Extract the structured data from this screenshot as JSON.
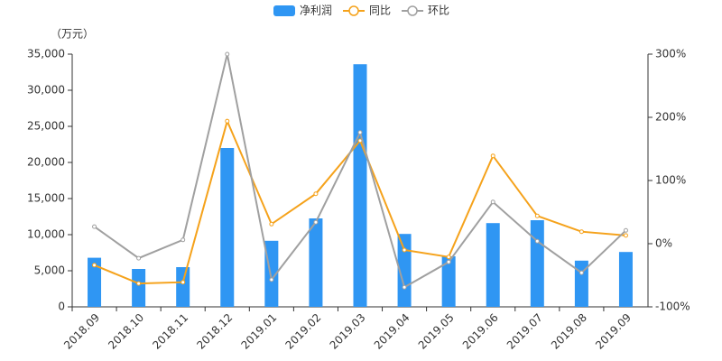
{
  "chart_data": {
    "type": "bar-line",
    "y_label": "（万元）",
    "categories": [
      "2018.09",
      "2018.10",
      "2018.11",
      "2018.12",
      "2019.01",
      "2019.02",
      "2019.03",
      "2019.04",
      "2019.05",
      "2019.06",
      "2019.07",
      "2019.08",
      "2019.09"
    ],
    "series": [
      {
        "name": "净利润",
        "type": "bar",
        "color": "#2f96f3",
        "values": [
          6800,
          5250,
          5500,
          22000,
          9150,
          12250,
          33600,
          10100,
          7000,
          11600,
          12000,
          6400,
          7600
        ]
      },
      {
        "name": "同比",
        "type": "line",
        "axis": "y2",
        "color": "#f5a21b",
        "values": [
          -34,
          -63,
          -61,
          194,
          31,
          79,
          163,
          -10,
          -21,
          139,
          44,
          19,
          13
        ]
      },
      {
        "name": "环比",
        "type": "line",
        "axis": "y2",
        "color": "#a0a0a0",
        "values": [
          27,
          -23,
          6,
          300,
          -57,
          34,
          176,
          -69,
          -29,
          66,
          4,
          -46,
          21
        ]
      }
    ],
    "ylim": [
      0,
      35000
    ],
    "yticks": [
      0,
      {
        "value": 5000,
        "label": "5,000"
      },
      {
        "value": 10000,
        "label": "10,000"
      },
      {
        "value": 15000,
        "label": "15,000"
      },
      {
        "value": 20000,
        "label": "20,000"
      },
      {
        "value": 25000,
        "label": "25,000"
      },
      {
        "value": 30000,
        "label": "30,000"
      },
      {
        "value": 35000,
        "label": "35,000"
      }
    ],
    "y2lim": [
      -100,
      300
    ],
    "y2ticks": [
      {
        "value": -100,
        "label": "-100%"
      },
      {
        "value": 0,
        "label": "0%"
      },
      {
        "value": 100,
        "label": "100%"
      },
      {
        "value": 200,
        "label": "200%"
      },
      {
        "value": 300,
        "label": "300%"
      }
    ]
  }
}
